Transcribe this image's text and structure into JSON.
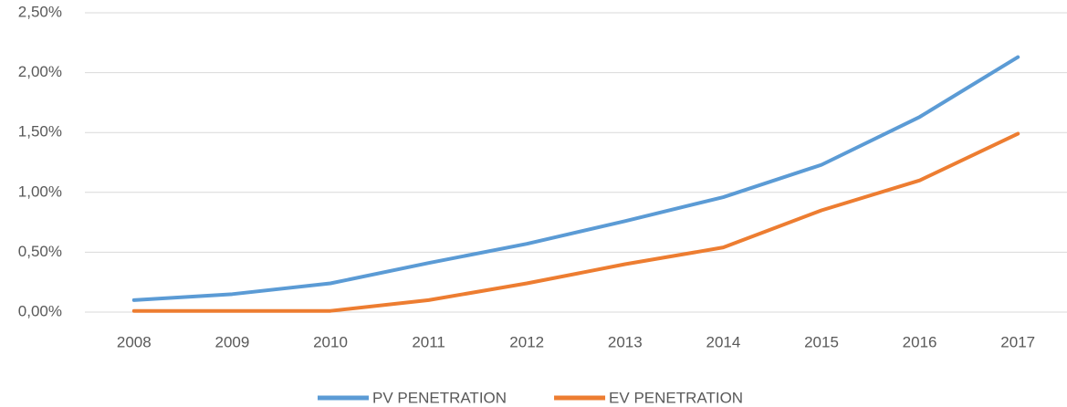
{
  "chart_data": {
    "type": "line",
    "categories": [
      "2008",
      "2009",
      "2010",
      "2011",
      "2012",
      "2013",
      "2014",
      "2015",
      "2016",
      "2017"
    ],
    "series": [
      {
        "name": "PV PENETRATION",
        "color": "#5b9bd5",
        "values": [
          0.1,
          0.15,
          0.24,
          0.41,
          0.57,
          0.76,
          0.96,
          1.23,
          1.63,
          2.13
        ]
      },
      {
        "name": "EV PENETRATION",
        "color": "#ed7d31",
        "values": [
          0.01,
          0.01,
          0.01,
          0.1,
          0.24,
          0.4,
          0.54,
          0.85,
          1.1,
          1.49
        ]
      }
    ],
    "ylim": [
      0,
      2.5
    ],
    "yticks": [
      {
        "value": 0,
        "label": "0,00%"
      },
      {
        "value": 0.5,
        "label": "0,50%"
      },
      {
        "value": 1,
        "label": "1,00%"
      },
      {
        "value": 1.5,
        "label": "1,50%"
      },
      {
        "value": 2,
        "label": "2,00%"
      },
      {
        "value": 2.5,
        "label": "2,50%"
      }
    ],
    "grid": true,
    "legend": "bottom"
  }
}
